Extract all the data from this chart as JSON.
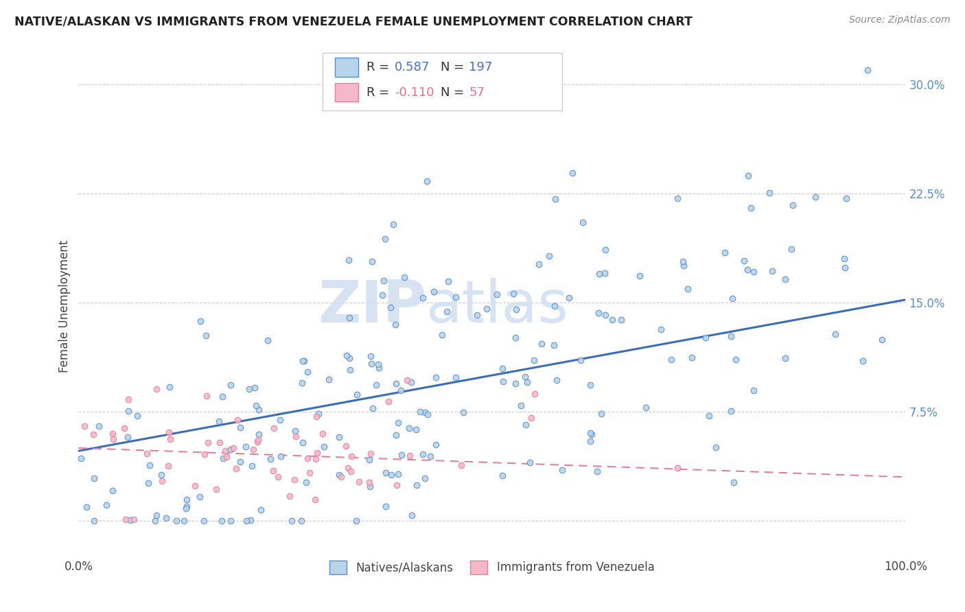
{
  "title": "NATIVE/ALASKAN VS IMMIGRANTS FROM VENEZUELA FEMALE UNEMPLOYMENT CORRELATION CHART",
  "source": "Source: ZipAtlas.com",
  "ylabel": "Female Unemployment",
  "yticks": [
    0.0,
    0.075,
    0.15,
    0.225,
    0.3
  ],
  "ytick_labels": [
    "",
    "7.5%",
    "15.0%",
    "22.5%",
    "30.0%"
  ],
  "blue_R": 0.587,
  "blue_N": 197,
  "pink_R": -0.11,
  "pink_N": 57,
  "blue_color": "#b8d4ea",
  "blue_edge_color": "#5b8cc8",
  "blue_line_color": "#3a6db5",
  "pink_color": "#f4b8c8",
  "pink_edge_color": "#e080a0",
  "pink_line_color": "#e080a0",
  "background_color": "#ffffff",
  "watermark_zip": "ZIP",
  "watermark_atlas": "atlas",
  "legend_label_blue": "Natives/Alaskans",
  "legend_label_pink": "Immigrants from Venezuela",
  "blue_scatter_seed": 77,
  "pink_scatter_seed": 88,
  "xlim": [
    0.0,
    1.0
  ],
  "ylim": [
    -0.025,
    0.32
  ],
  "blue_trend_x0": 0.0,
  "blue_trend_y0": 0.048,
  "blue_trend_x1": 1.0,
  "blue_trend_y1": 0.152,
  "pink_trend_x0": 0.0,
  "pink_trend_y0": 0.05,
  "pink_trend_x1": 1.0,
  "pink_trend_y1": 0.03
}
